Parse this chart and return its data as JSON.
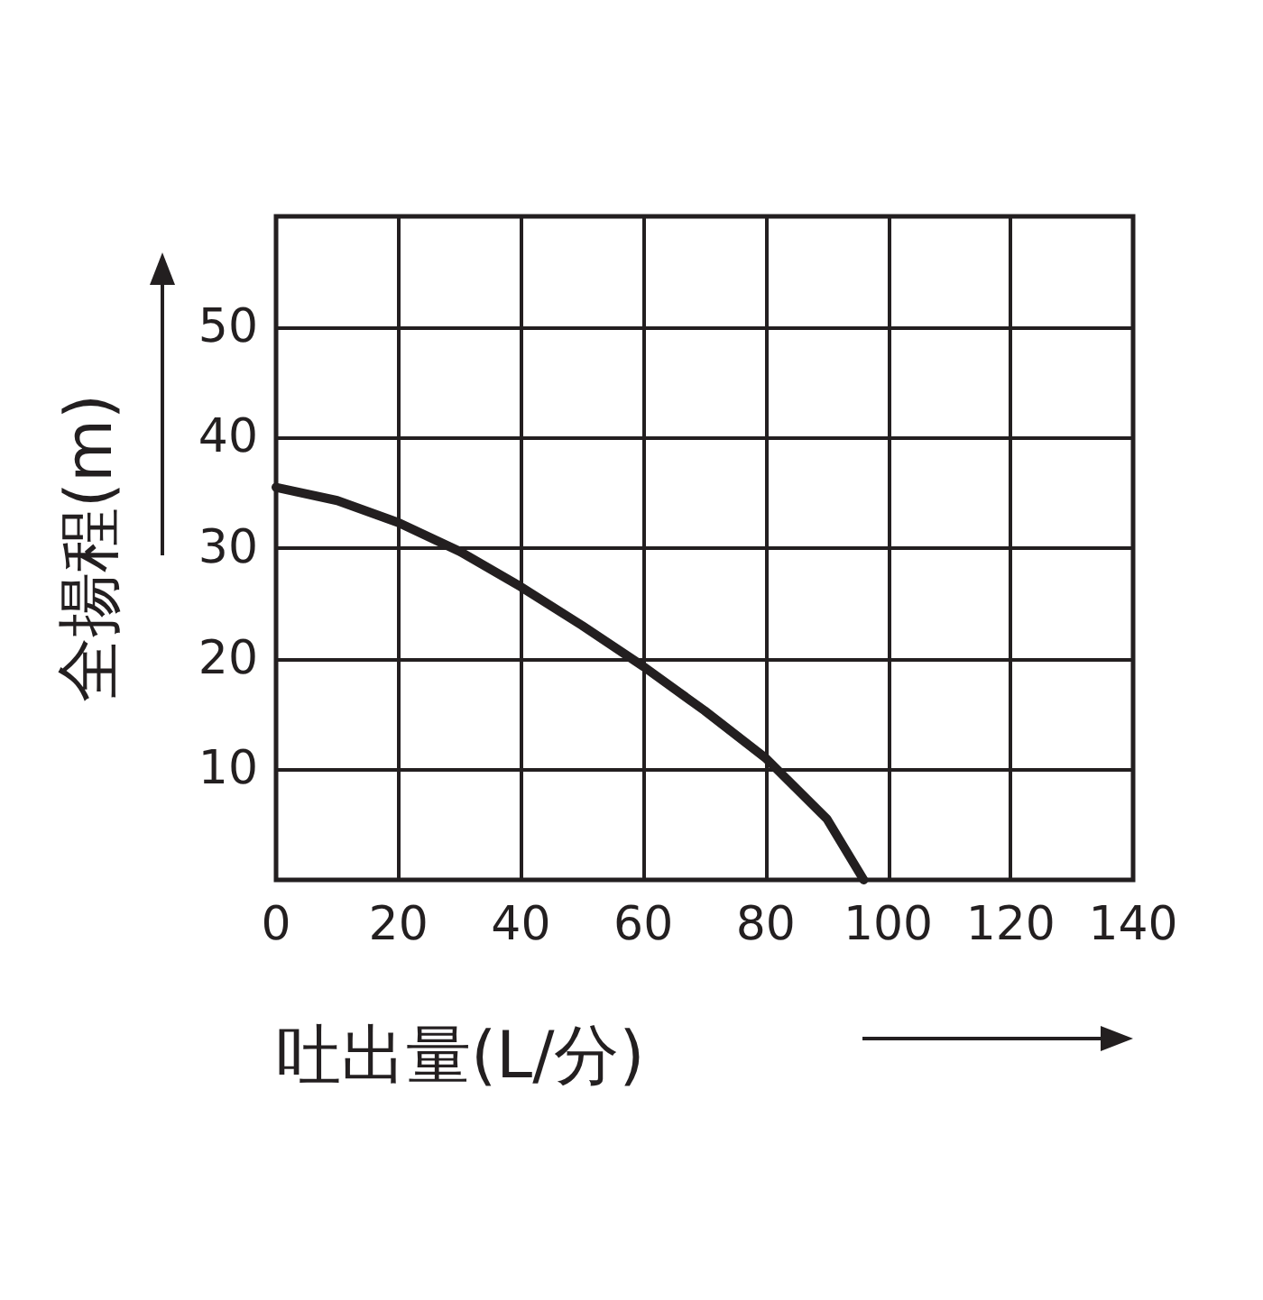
{
  "chart_data": {
    "type": "line",
    "xlabel": "吐出量(L/分)",
    "ylabel": "全揚程(m)",
    "x": [
      0,
      10,
      20,
      30,
      40,
      50,
      60,
      70,
      80,
      90,
      96
    ],
    "series": [
      {
        "color": "#231f20",
        "values": [
          35.5,
          34.3,
          32.3,
          29.7,
          26.5,
          23,
          19.3,
          15.3,
          11,
          5.5,
          0
        ]
      }
    ],
    "xlim": [
      0,
      140
    ],
    "xticks": [
      0,
      20,
      40,
      60,
      80,
      100,
      120,
      140
    ],
    "ylim": [
      0,
      60
    ],
    "yticks": [
      10,
      20,
      30,
      40,
      50
    ],
    "grid": true,
    "marker": "none",
    "line_style": "solid"
  }
}
